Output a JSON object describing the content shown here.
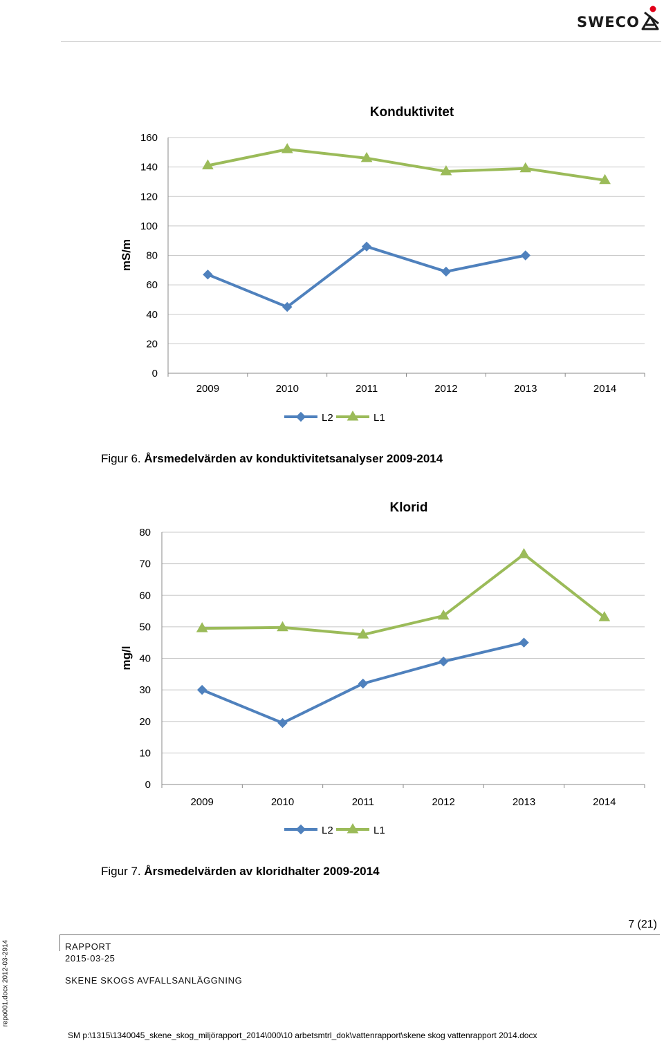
{
  "header": {
    "logo_text": "SWECO"
  },
  "chart_data": [
    {
      "type": "line",
      "title": "Konduktivitet",
      "xlabel": "",
      "ylabel": "mS/m",
      "ylim": [
        0,
        160
      ],
      "yticks": [
        0,
        20,
        40,
        60,
        80,
        100,
        120,
        140,
        160
      ],
      "categories": [
        "2009",
        "2010",
        "2011",
        "2012",
        "2013",
        "2014"
      ],
      "series": [
        {
          "name": "L2",
          "marker": "diamond",
          "color": "#4f81bd",
          "values": [
            67,
            45,
            86,
            69,
            80,
            null
          ]
        },
        {
          "name": "L1",
          "marker": "triangle",
          "color": "#9bbb59",
          "values": [
            141,
            152,
            146,
            137,
            139,
            131
          ]
        }
      ],
      "grid": true,
      "legend": "bottom"
    },
    {
      "type": "line",
      "title": "Klorid",
      "xlabel": "",
      "ylabel": "mg/l",
      "ylim": [
        0,
        80
      ],
      "yticks": [
        0,
        10,
        20,
        30,
        40,
        50,
        60,
        70,
        80
      ],
      "categories": [
        "2009",
        "2010",
        "2011",
        "2012",
        "2013",
        "2014"
      ],
      "series": [
        {
          "name": "L2",
          "marker": "diamond",
          "color": "#4f81bd",
          "values": [
            30,
            19.5,
            32,
            39,
            45,
            null
          ]
        },
        {
          "name": "L1",
          "marker": "triangle",
          "color": "#9bbb59",
          "values": [
            49.5,
            49.8,
            47.5,
            53.5,
            73,
            53
          ]
        }
      ],
      "grid": true,
      "legend": "bottom"
    }
  ],
  "captions": {
    "fig6_prefix": "Figur 6. ",
    "fig6_text": "Årsmedelvärden av konduktivitetsanalyser 2009-2014",
    "fig7_prefix": "Figur 7. ",
    "fig7_text": "Årsmedelvärden av kloridhalter 2009-2014"
  },
  "footer": {
    "page_number": "7 (21)",
    "doc_type": "RAPPORT",
    "date": "2015-03-25",
    "project": "SKENE SKOGS AVFALLSANLÄGGNING",
    "side_text": "repo001.docx 2012-03-2914",
    "path": "SM p:\\1315\\1340045_skene_skog_miljörapport_2014\\000\\10 arbetsmtrl_dok\\vattenrapport\\skene skog vattenrapport 2014.docx"
  }
}
